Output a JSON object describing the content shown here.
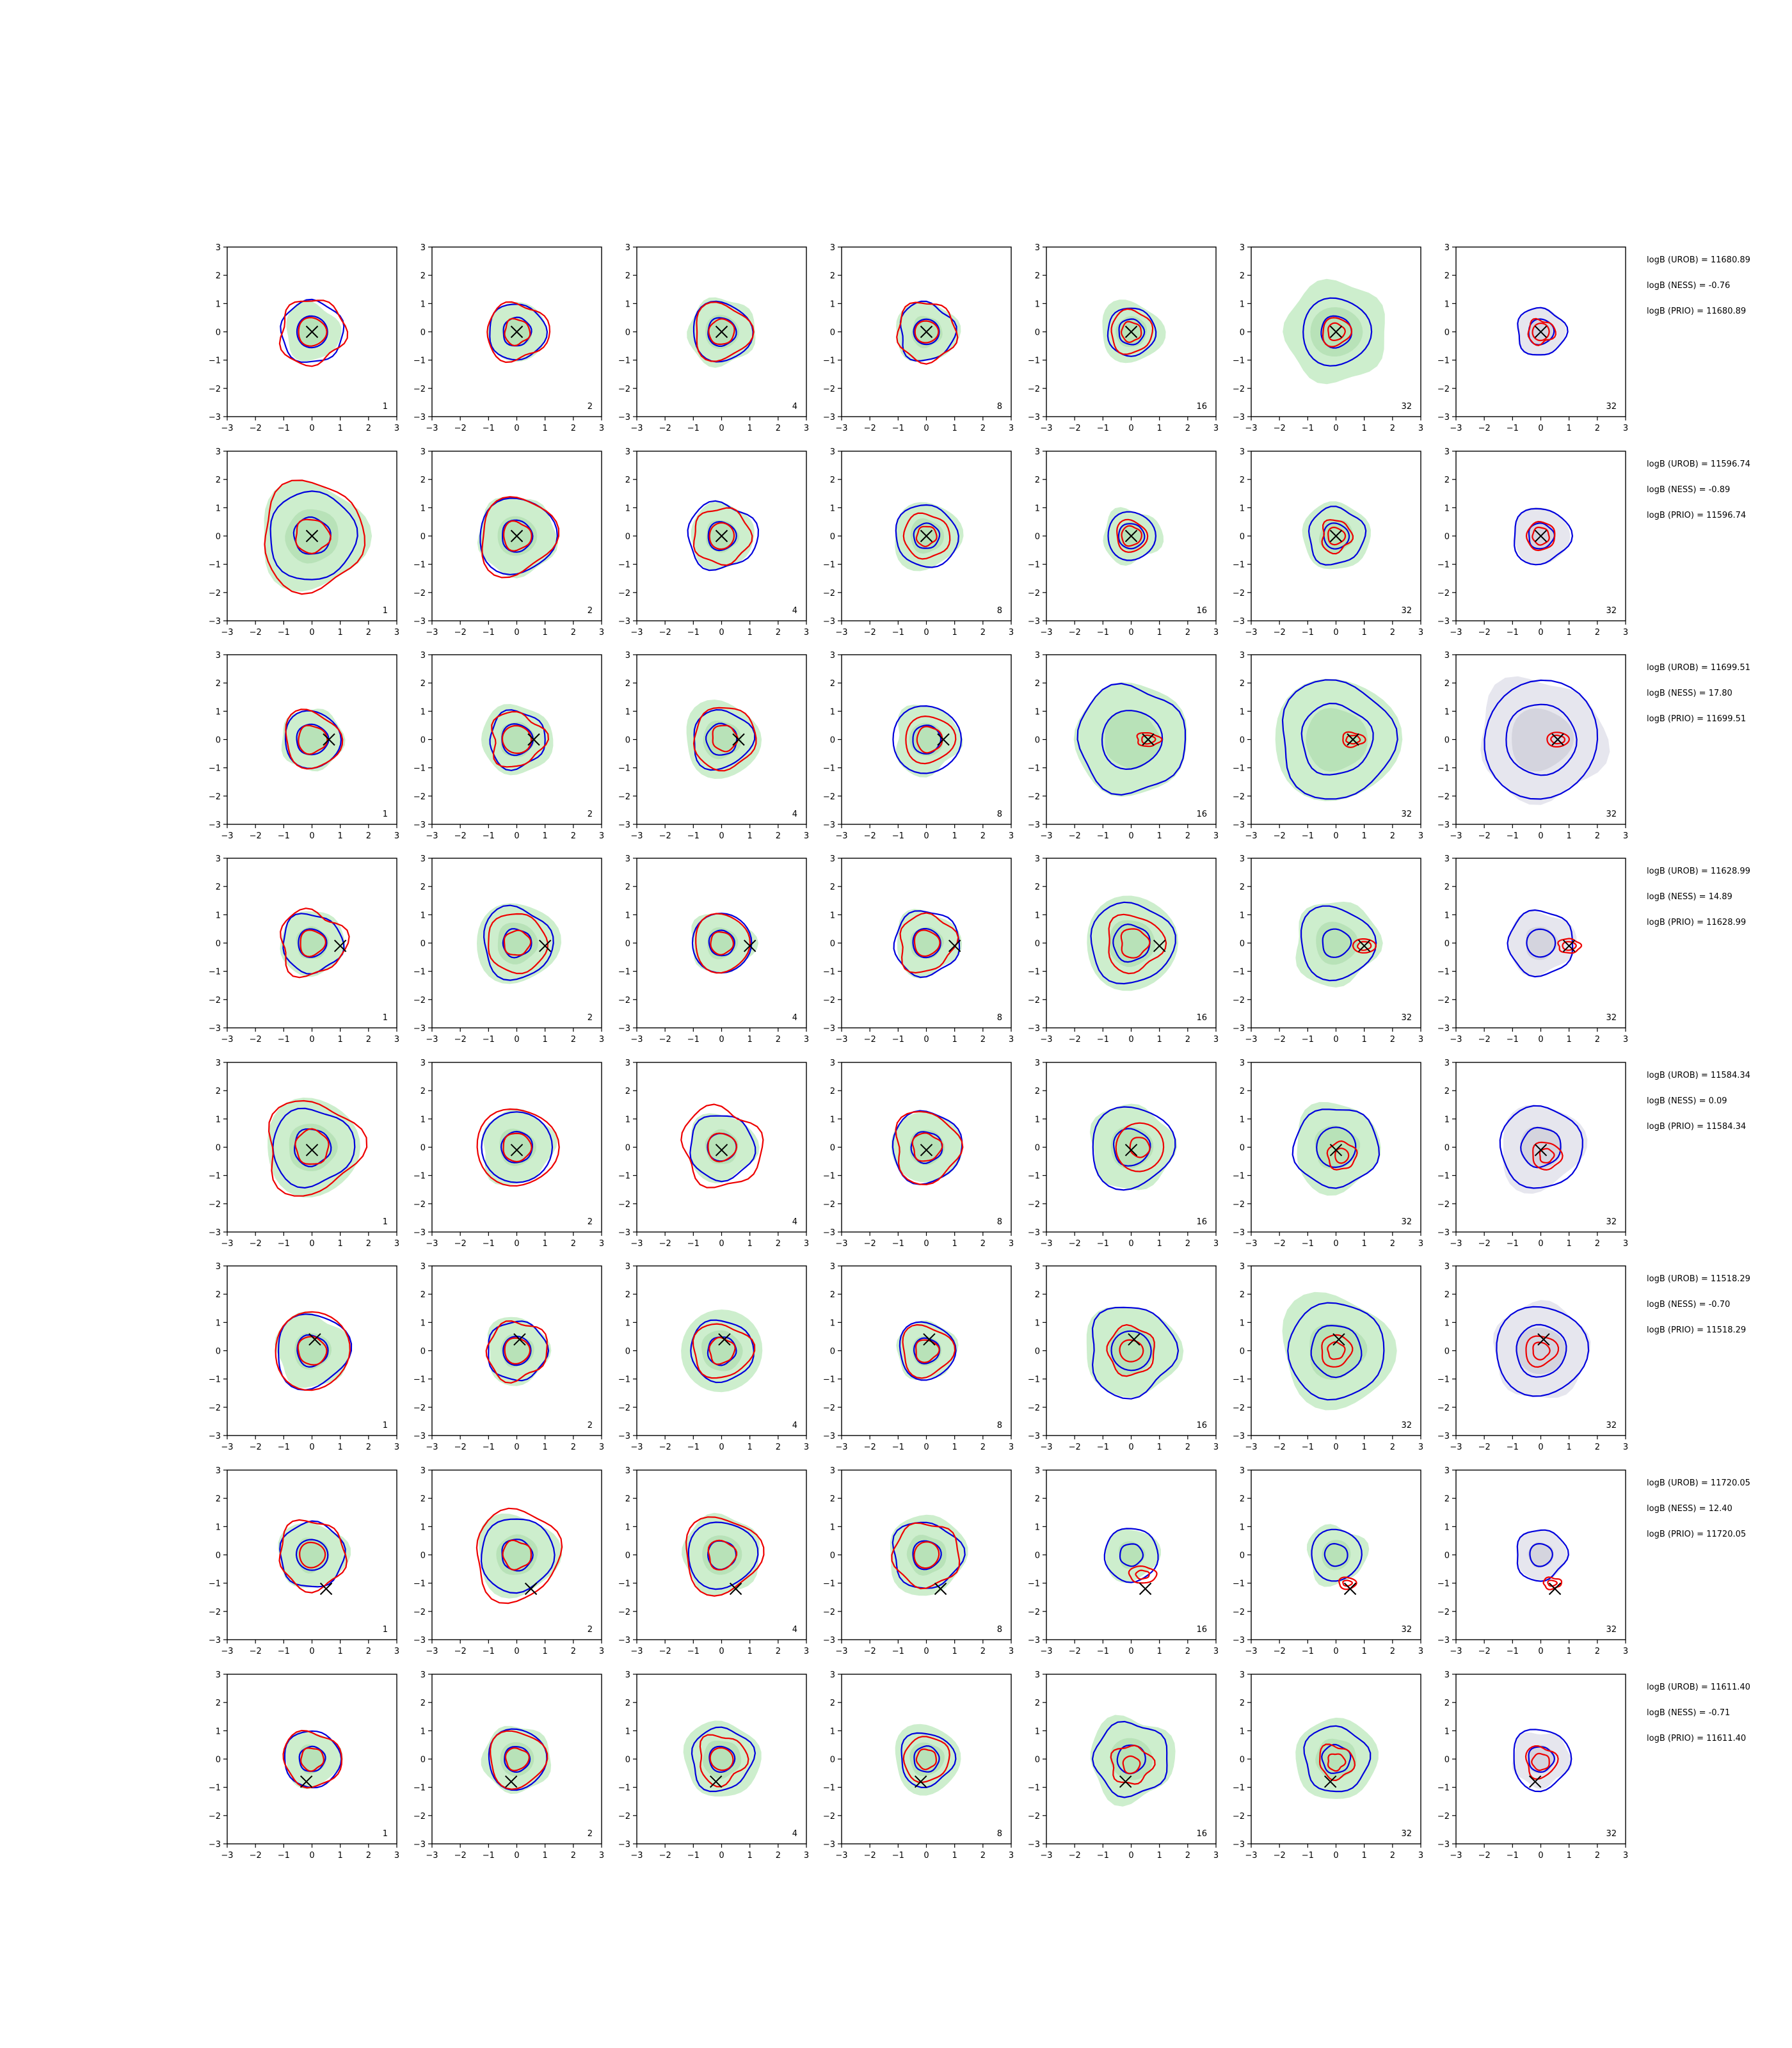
{
  "chart_data": {
    "type": "contour-grid",
    "rows": 8,
    "cols": 7,
    "xlim": [
      -3,
      3
    ],
    "ylim": [
      -3,
      3
    ],
    "x_ticks": [
      -3,
      -2,
      -1,
      0,
      1,
      2,
      3
    ],
    "y_ticks": [
      -3,
      -2,
      -1,
      0,
      1,
      2,
      3
    ],
    "x_tick_labels": [
      "−3",
      "−2",
      "−1",
      "0",
      "1",
      "2",
      "3"
    ],
    "y_tick_labels": [
      "3",
      "2",
      "1",
      "0",
      "−1",
      "−2",
      "−3"
    ],
    "column_labels": [
      "1",
      "2",
      "4",
      "8",
      "16",
      "32",
      "32"
    ],
    "colors": {
      "fill_green": "#cdeecd",
      "fill_green_dark": "#b8e2b8",
      "fill_grey": "#e6e6ee",
      "fill_grey_dark": "#d4d4de",
      "contour_blue": "#0000dd",
      "contour_red": "#ee0000",
      "marker": "#000000"
    },
    "rows_data": [
      {
        "marker": [
          0.0,
          0.0
        ],
        "logb": [
          "logB (UROB) = 11680.89",
          "logB (NESS) = -0.76",
          "logB (PRIO) = 11680.89"
        ],
        "panels": [
          {
            "fill": 1.0,
            "blue": [
              1.1,
              0.55
            ],
            "red": [
              1.15,
              0.5
            ],
            "red_off": [
              0,
              0
            ]
          },
          {
            "fill": 1.05,
            "blue": [
              1.0,
              0.5
            ],
            "red": [
              1.05,
              0.45
            ],
            "red_off": [
              0,
              0
            ]
          },
          {
            "fill": 1.2,
            "blue": [
              1.05,
              0.5
            ],
            "red": [
              1.0,
              0.45
            ],
            "red_off": [
              0,
              0
            ]
          },
          {
            "fill": 1.1,
            "blue": [
              1.0,
              0.45
            ],
            "red": [
              1.05,
              0.4
            ],
            "red_off": [
              0,
              0
            ]
          },
          {
            "fill": 1.1,
            "blue": [
              0.85,
              0.45
            ],
            "red": [
              0.75,
              0.35
            ],
            "red_off": [
              0,
              0
            ]
          },
          {
            "fill": 1.8,
            "blue": [
              1.2,
              0.55
            ],
            "red": [
              0.5,
              0.3
            ],
            "red_off": [
              0,
              0
            ]
          },
          {
            "fill": 0.85,
            "blue": [
              0.85,
              0.45
            ],
            "red": [
              0.45,
              0.3
            ],
            "red_off": [
              0,
              0
            ],
            "grey": true
          }
        ]
      },
      {
        "marker": [
          0.0,
          0.0
        ],
        "logb": [
          "logB (UROB) = 11596.74",
          "logB (NESS) = -0.89",
          "logB (PRIO) = 11596.74"
        ],
        "panels": [
          {
            "fill": 1.9,
            "blue": [
              1.55,
              0.65
            ],
            "red": [
              1.85,
              0.6
            ],
            "red_off": [
              0,
              0
            ]
          },
          {
            "fill": 1.4,
            "blue": [
              1.35,
              0.55
            ],
            "red": [
              1.35,
              0.5
            ],
            "red_off": [
              0,
              0
            ]
          },
          {
            "fill": 1.15,
            "blue": [
              1.2,
              0.5
            ],
            "red": [
              1.0,
              0.45
            ],
            "red_off": [
              0,
              0
            ]
          },
          {
            "fill": 1.2,
            "blue": [
              1.1,
              0.45
            ],
            "red": [
              0.8,
              0.35
            ],
            "red_off": [
              0,
              0
            ]
          },
          {
            "fill": 1.0,
            "blue": [
              0.85,
              0.45
            ],
            "red": [
              0.55,
              0.35
            ],
            "red_off": [
              0,
              0
            ]
          },
          {
            "fill": 1.2,
            "blue": [
              1.0,
              0.45
            ],
            "red": [
              0.55,
              0.3
            ],
            "red_off": [
              0,
              0
            ]
          },
          {
            "fill": 1.0,
            "blue": [
              1.0,
              0.45
            ],
            "red": [
              0.5,
              0.3
            ],
            "red_off": [
              0,
              0
            ],
            "grey": true
          }
        ]
      },
      {
        "marker": [
          0.6,
          0.0
        ],
        "logb": [
          "logB (UROB) = 11699.51",
          "logB (NESS) = 17.80",
          "logB (PRIO) = 11699.51"
        ],
        "panels": [
          {
            "fill": 1.1,
            "blue": [
              1.0,
              0.55
            ],
            "red": [
              1.0,
              0.5
            ],
            "red_off": [
              0,
              0
            ]
          },
          {
            "fill": 1.25,
            "blue": [
              1.0,
              0.55
            ],
            "red": [
              0.95,
              0.5
            ],
            "red_off": [
              0,
              0
            ]
          },
          {
            "fill": 1.35,
            "blue": [
              1.05,
              0.55
            ],
            "red": [
              1.1,
              0.45
            ],
            "red_off": [
              0.1,
              0.05
            ]
          },
          {
            "fill": 1.2,
            "blue": [
              1.2,
              0.5
            ],
            "red": [
              0.85,
              0.45
            ],
            "red_off": [
              0.1,
              0
            ]
          },
          {
            "fill": 2.0,
            "blue": [
              1.9,
              1.05
            ],
            "red": [
              0.25,
              0.15
            ],
            "red_off": [
              0.6,
              0
            ]
          },
          {
            "fill": 2.2,
            "blue": [
              2.05,
              1.25
            ],
            "red": [
              0.25,
              0.15
            ],
            "red_off": [
              0.6,
              0
            ]
          },
          {
            "fill": 2.2,
            "blue": [
              2.05,
              1.25
            ],
            "red": [
              0.25,
              0.15
            ],
            "red_off": [
              0.6,
              0
            ],
            "grey": true
          }
        ]
      },
      {
        "marker": [
          1.0,
          -0.1
        ],
        "logb": [
          "logB (UROB) = 11628.99",
          "logB (NESS) = 14.89",
          "logB (PRIO) = 11628.99"
        ],
        "panels": [
          {
            "fill": 1.15,
            "blue": [
              1.05,
              0.5
            ],
            "red": [
              1.15,
              0.45
            ],
            "red_off": [
              0,
              0
            ]
          },
          {
            "fill": 1.45,
            "blue": [
              1.25,
              0.5
            ],
            "red": [
              1.05,
              0.45
            ],
            "red_off": [
              0,
              0
            ]
          },
          {
            "fill": 1.1,
            "blue": [
              1.05,
              0.45
            ],
            "red": [
              1.0,
              0.4
            ],
            "red_off": [
              0,
              0
            ]
          },
          {
            "fill": 1.15,
            "blue": [
              1.15,
              0.5
            ],
            "red": [
              1.0,
              0.45
            ],
            "red_off": [
              0,
              0
            ]
          },
          {
            "fill": 1.65,
            "blue": [
              1.45,
              0.65
            ],
            "red": [
              1.0,
              0.5
            ],
            "red_off": [
              0.1,
              0
            ]
          },
          {
            "fill": 1.5,
            "blue": [
              1.3,
              0.5
            ],
            "red": [
              0.25,
              0.15
            ],
            "red_off": [
              1.0,
              -0.1
            ]
          },
          {
            "fill": 1.15,
            "blue": [
              1.15,
              0.5
            ],
            "red": [
              0.25,
              0.15
            ],
            "red_off": [
              1.0,
              -0.1
            ],
            "grey": true
          }
        ]
      },
      {
        "marker": [
          0.0,
          -0.1
        ],
        "logb": [
          "logB (UROB) = 11584.34",
          "logB (NESS) = 0.09",
          "logB (PRIO) = 11584.34"
        ],
        "panels": [
          {
            "fill": 1.7,
            "blue": [
              1.4,
              0.65
            ],
            "red": [
              1.65,
              0.6
            ],
            "red_off": [
              0,
              0
            ]
          },
          {
            "fill": 1.3,
            "blue": [
              1.25,
              0.55
            ],
            "red": [
              1.4,
              0.5
            ],
            "red_off": [
              0,
              0
            ]
          },
          {
            "fill": 1.2,
            "blue": [
              1.15,
              0.5
            ],
            "red": [
              1.4,
              0.5
            ],
            "red_off": [
              0,
              0
            ]
          },
          {
            "fill": 1.25,
            "blue": [
              1.25,
              0.55
            ],
            "red": [
              1.2,
              0.5
            ],
            "red_off": [
              0,
              0
            ]
          },
          {
            "fill": 1.5,
            "blue": [
              1.45,
              0.65
            ],
            "red": [
              0.85,
              0.35
            ],
            "red_off": [
              0.3,
              0
            ]
          },
          {
            "fill": 1.55,
            "blue": [
              1.45,
              0.7
            ],
            "red": [
              0.5,
              0.25
            ],
            "red_off": [
              0.2,
              -0.3
            ]
          },
          {
            "fill": 1.5,
            "blue": [
              1.45,
              0.7
            ],
            "red": [
              0.5,
              0.25
            ],
            "red_off": [
              0.2,
              -0.3
            ],
            "grey": true
          }
        ]
      },
      {
        "marker": [
          0.1,
          0.4
        ],
        "logb": [
          "logB (UROB) = 11518.29",
          "logB (NESS) = -0.70",
          "logB (PRIO) = 11518.29"
        ],
        "panels": [
          {
            "fill": 1.3,
            "blue": [
              1.3,
              0.55
            ],
            "red": [
              1.35,
              0.5
            ],
            "red_off": [
              0,
              0
            ]
          },
          {
            "fill": 1.15,
            "blue": [
              1.05,
              0.5
            ],
            "red": [
              1.05,
              0.45
            ],
            "red_off": [
              0,
              0
            ]
          },
          {
            "fill": 1.45,
            "blue": [
              1.1,
              0.5
            ],
            "red": [
              1.0,
              0.45
            ],
            "red_off": [
              0,
              0
            ]
          },
          {
            "fill": 1.05,
            "blue": [
              1.0,
              0.45
            ],
            "red": [
              0.9,
              0.4
            ],
            "red_off": [
              0,
              0
            ]
          },
          {
            "fill": 1.65,
            "blue": [
              1.55,
              0.7
            ],
            "red": [
              0.85,
              0.4
            ],
            "red_off": [
              0,
              0
            ]
          },
          {
            "fill": 2.0,
            "blue": [
              1.7,
              0.9
            ],
            "red": [
              0.55,
              0.3
            ],
            "red_off": [
              0,
              0
            ]
          },
          {
            "fill": 1.7,
            "blue": [
              1.6,
              0.9
            ],
            "red": [
              0.55,
              0.3
            ],
            "red_off": [
              0,
              0
            ],
            "grey": true
          }
        ]
      },
      {
        "marker": [
          0.5,
          -1.2
        ],
        "logb": [
          "logB (UROB) = 11720.05",
          "logB (NESS) = 12.40",
          "logB (PRIO) = 11720.05"
        ],
        "panels": [
          {
            "fill": 1.2,
            "blue": [
              1.15,
              0.55
            ],
            "red": [
              1.2,
              0.45
            ],
            "red_off": [
              0,
              0
            ]
          },
          {
            "fill": 1.45,
            "blue": [
              1.3,
              0.55
            ],
            "red": [
              1.55,
              0.5
            ],
            "red_off": [
              0,
              0
            ]
          },
          {
            "fill": 1.4,
            "blue": [
              1.2,
              0.5
            ],
            "red": [
              1.35,
              0.5
            ],
            "red_off": [
              0,
              0
            ]
          },
          {
            "fill": 1.4,
            "blue": [
              1.2,
              0.5
            ],
            "red": [
              1.15,
              0.45
            ],
            "red_off": [
              0,
              0
            ]
          },
          {
            "fill": 0.95,
            "blue": [
              0.95,
              0.4
            ],
            "red": [
              0.3,
              0.15
            ],
            "red_off": [
              0.4,
              -0.7
            ]
          },
          {
            "fill": 1.05,
            "blue": [
              0.9,
              0.4
            ],
            "red": [
              0.2,
              0.1
            ],
            "red_off": [
              0.4,
              -1.0
            ]
          },
          {
            "fill": 0.9,
            "blue": [
              0.9,
              0.4
            ],
            "red": [
              0.2,
              0.1
            ],
            "red_off": [
              0.4,
              -1.0
            ],
            "grey": true
          }
        ]
      },
      {
        "marker": [
          -0.2,
          -0.8
        ],
        "logb": [
          "logB (UROB) = 11611.40",
          "logB (NESS) = -0.71",
          "logB (PRIO) = 11611.40"
        ],
        "panels": [
          {
            "fill": 1.0,
            "blue": [
              1.0,
              0.45
            ],
            "red": [
              1.0,
              0.4
            ],
            "red_off": [
              0,
              0
            ]
          },
          {
            "fill": 1.2,
            "blue": [
              1.05,
              0.45
            ],
            "red": [
              1.0,
              0.4
            ],
            "red_off": [
              0,
              0
            ]
          },
          {
            "fill": 1.35,
            "blue": [
              1.1,
              0.45
            ],
            "red": [
              0.85,
              0.4
            ],
            "red_off": [
              0,
              0
            ]
          },
          {
            "fill": 1.2,
            "blue": [
              0.95,
              0.45
            ],
            "red": [
              0.8,
              0.35
            ],
            "red_off": [
              0,
              0
            ]
          },
          {
            "fill": 1.5,
            "blue": [
              1.3,
              0.5
            ],
            "red": [
              0.7,
              0.3
            ],
            "red_off": [
              0,
              -0.2
            ]
          },
          {
            "fill": 1.45,
            "blue": [
              1.15,
              0.5
            ],
            "red": [
              0.6,
              0.3
            ],
            "red_off": [
              0,
              -0.1
            ]
          },
          {
            "fill": 1.0,
            "blue": [
              1.05,
              0.45
            ],
            "red": [
              0.55,
              0.3
            ],
            "red_off": [
              0,
              -0.1
            ],
            "grey": true
          }
        ]
      }
    ]
  }
}
